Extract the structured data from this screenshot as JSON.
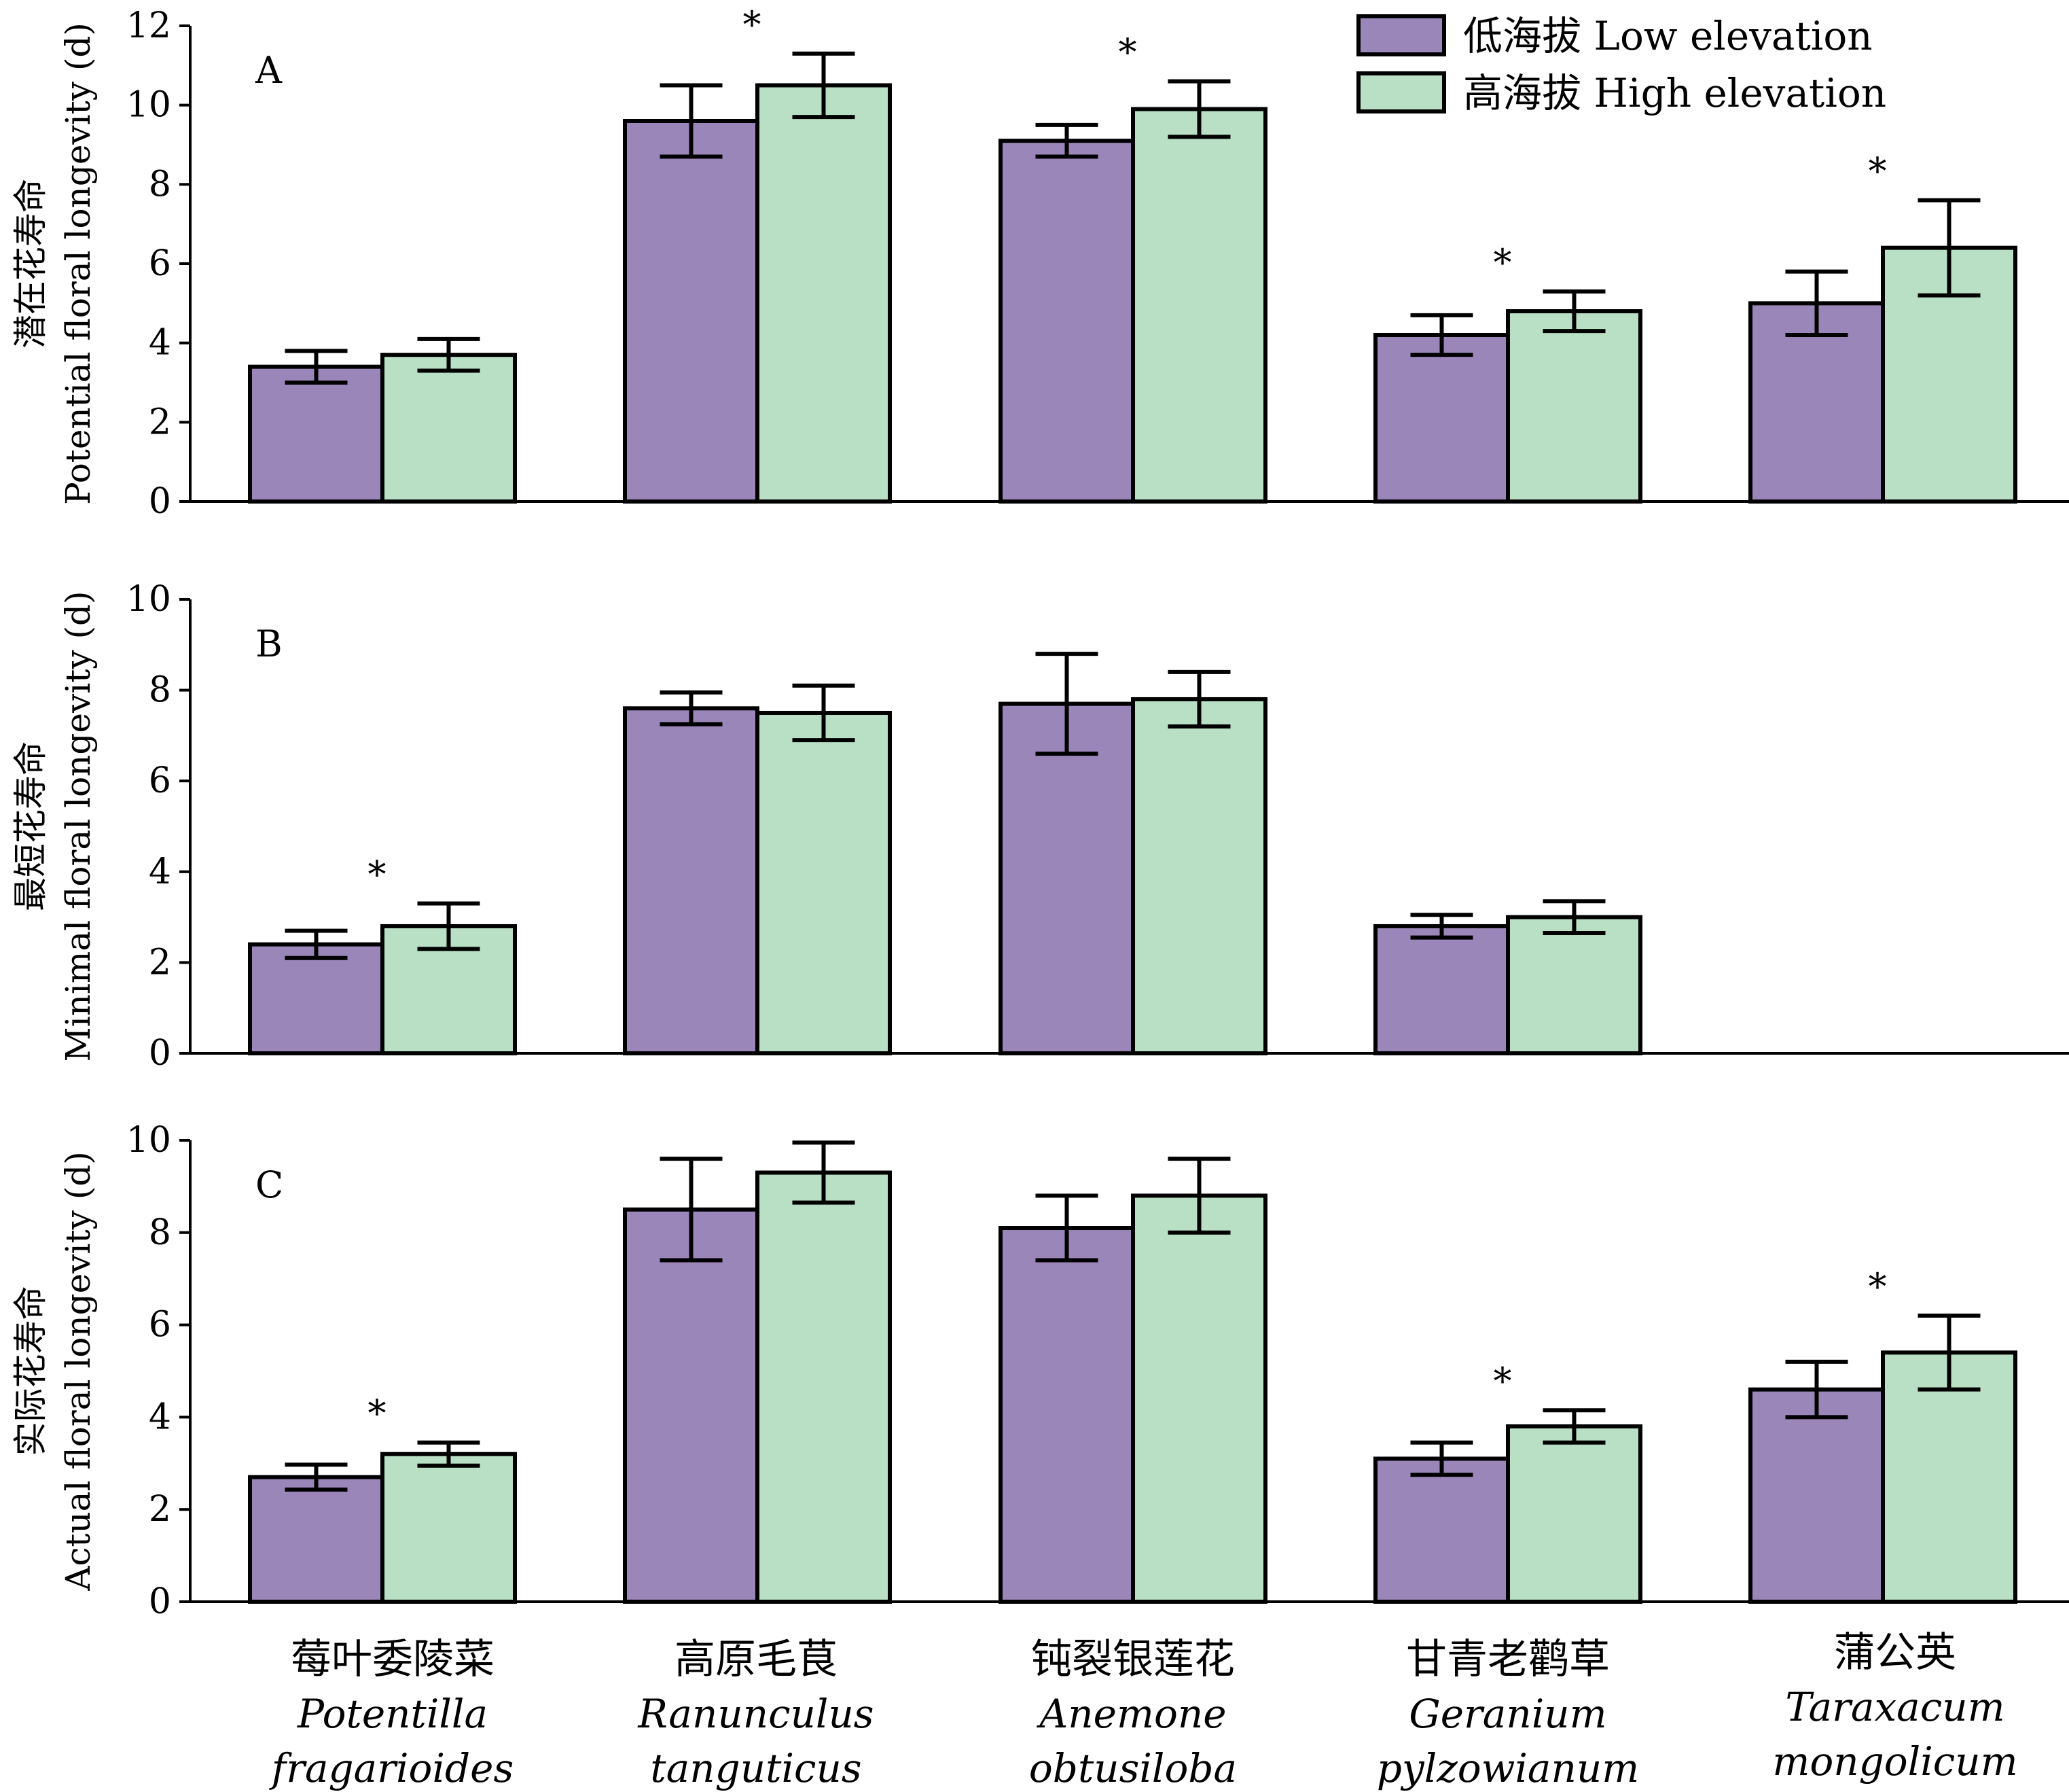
{
  "legend": [
    {
      "label": "低海拔 Low elevation",
      "color": "#9B86B9"
    },
    {
      "label": "高海拔 High elevation",
      "color": "#B9DFC4"
    }
  ],
  "categories": [
    {
      "cn": "莓叶委陵菜",
      "sci1": "Potentilla",
      "sci2": "fragarioides"
    },
    {
      "cn": "高原毛茛",
      "sci1": "Ranunculus",
      "sci2": "tanguticus"
    },
    {
      "cn": "钝裂银莲花",
      "sci1": "Anemone",
      "sci2": "obtusiloba"
    },
    {
      "cn": "甘青老鹳草",
      "sci1": "Geranium",
      "sci2": "pylzowianum"
    },
    {
      "cn": "蒲公英",
      "sci1": "Taraxacum",
      "sci2": "mongolicum"
    }
  ],
  "chart_data": [
    {
      "type": "bar",
      "panel": "A",
      "ylabel_cn": "潜在花寿命",
      "ylabel_en": "Potential floral longevity (d)",
      "ylim": [
        0,
        12
      ],
      "yticks": [
        0,
        2,
        4,
        6,
        8,
        10,
        12
      ],
      "series": [
        {
          "name": "低海拔 Low elevation",
          "values": [
            3.4,
            9.6,
            9.1,
            4.2,
            5.0
          ],
          "errors": [
            0.4,
            0.9,
            0.4,
            0.5,
            0.8
          ]
        },
        {
          "name": "高海拔 High elevation",
          "values": [
            3.7,
            10.5,
            9.9,
            4.8,
            6.4
          ],
          "errors": [
            0.4,
            0.8,
            0.7,
            0.5,
            1.2
          ]
        }
      ],
      "significance": [
        "",
        "*",
        "*",
        "*",
        "*"
      ]
    },
    {
      "type": "bar",
      "panel": "B",
      "ylabel_cn": "最短花寿命",
      "ylabel_en": "Minimal floral longevity (d)",
      "ylim": [
        0,
        10
      ],
      "yticks": [
        0,
        2,
        4,
        6,
        8,
        10
      ],
      "series": [
        {
          "name": "低海拔 Low elevation",
          "values": [
            2.4,
            7.6,
            7.7,
            2.8,
            null
          ],
          "errors": [
            0.3,
            0.35,
            1.1,
            0.25,
            null
          ]
        },
        {
          "name": "高海拔 High elevation",
          "values": [
            2.8,
            7.5,
            7.8,
            3.0,
            null
          ],
          "errors": [
            0.5,
            0.6,
            0.6,
            0.35,
            null
          ]
        }
      ],
      "significance": [
        "*",
        "",
        "",
        "",
        ""
      ]
    },
    {
      "type": "bar",
      "panel": "C",
      "ylabel_cn": "实际花寿命",
      "ylabel_en": "Actual floral longevity (d)",
      "ylim": [
        0,
        10
      ],
      "yticks": [
        0,
        2,
        4,
        6,
        8,
        10
      ],
      "series": [
        {
          "name": "低海拔 Low elevation",
          "values": [
            2.7,
            8.5,
            8.1,
            3.1,
            4.6
          ],
          "errors": [
            0.27,
            1.1,
            0.7,
            0.35,
            0.6
          ]
        },
        {
          "name": "高海拔 High elevation",
          "values": [
            3.2,
            9.3,
            8.8,
            3.8,
            5.4
          ],
          "errors": [
            0.25,
            0.65,
            0.8,
            0.35,
            0.8
          ]
        }
      ],
      "significance": [
        "*",
        "",
        "",
        "*",
        "*"
      ]
    }
  ]
}
